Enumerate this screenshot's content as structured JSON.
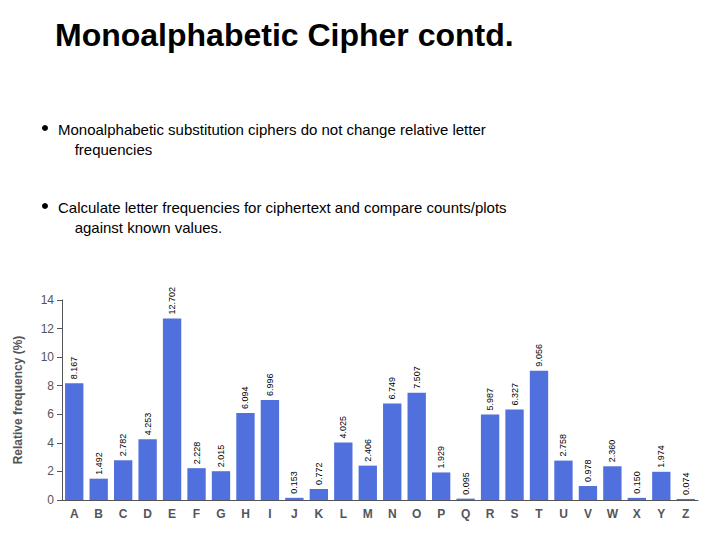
{
  "chart_data": {
    "type": "bar",
    "title": "Monoalphabetic Cipher contd.",
    "annotations": [
      "Monoalphabetic substitution ciphers do not change relative letter\n    frequencies",
      "Calculate letter frequencies for ciphertext and compare counts/plots\n    against known values."
    ],
    "categories": [
      "A",
      "B",
      "C",
      "D",
      "E",
      "F",
      "G",
      "H",
      "I",
      "J",
      "K",
      "L",
      "M",
      "N",
      "O",
      "P",
      "Q",
      "R",
      "S",
      "T",
      "U",
      "V",
      "W",
      "X",
      "Y",
      "Z"
    ],
    "values": [
      8.167,
      1.492,
      2.782,
      4.253,
      12.702,
      2.228,
      2.015,
      6.094,
      6.996,
      0.153,
      0.772,
      4.025,
      2.406,
      6.749,
      7.507,
      1.929,
      0.095,
      5.987,
      6.327,
      9.056,
      2.758,
      0.978,
      2.36,
      0.15,
      1.974,
      0.074
    ],
    "value_labels": [
      "8.167",
      "1.492",
      "2.782",
      "4.253",
      "12.702",
      "2.228",
      "2.015",
      "6.094",
      "6.996",
      "0.153",
      "0.772",
      "4.025",
      "2.406",
      "6.749",
      "7.507",
      "1.929",
      "0.095",
      "5.987",
      "6.327",
      "9.056",
      "2.758",
      "0.978",
      "2.360",
      "0.150",
      "1.974",
      "0.074"
    ],
    "data_labels": true,
    "ylabel": "Relative frequency (%)",
    "ylim": [
      0,
      14
    ],
    "yticks": [
      0,
      2,
      4,
      6,
      8,
      10,
      12,
      14
    ],
    "grid": false
  }
}
